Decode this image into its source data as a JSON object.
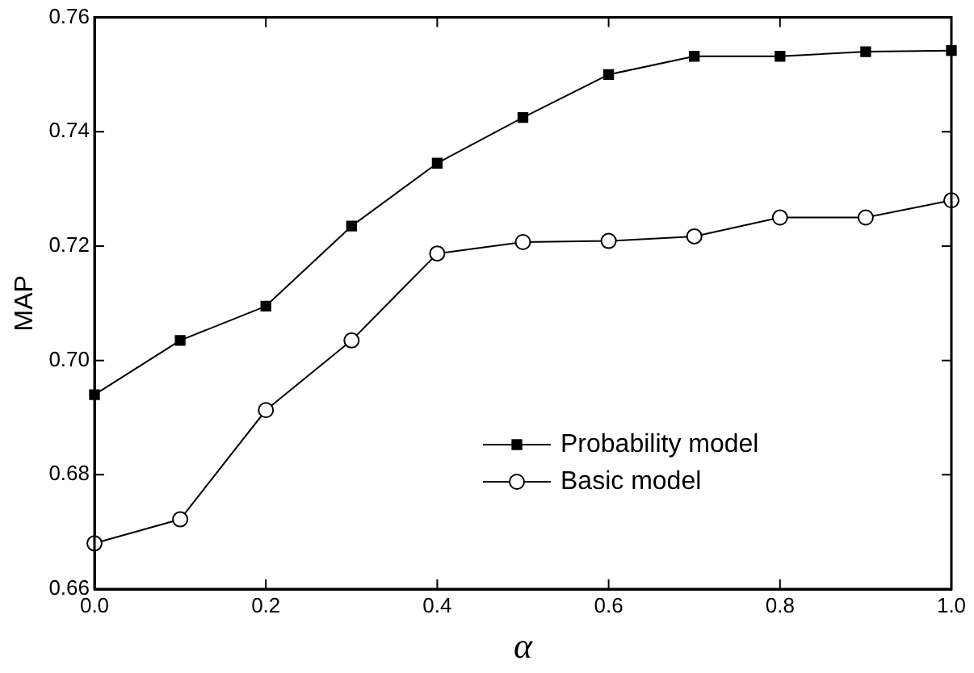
{
  "chart_data": {
    "type": "line",
    "xlabel": "α",
    "ylabel": "MAP",
    "x": [
      0,
      0.1,
      0.2,
      0.3,
      0.4,
      0.5,
      0.6,
      0.7,
      0.8,
      0.9,
      1.0
    ],
    "xlim": [
      0,
      1
    ],
    "xticks": [
      {
        "value": 0,
        "label": "0.0"
      },
      0.2,
      0.4,
      0.6,
      0.8,
      {
        "value": 1,
        "label": "1.0"
      }
    ],
    "ylim": [
      0.66,
      0.76
    ],
    "yticks": [
      0.66,
      {
        "value": 0.68,
        "label": "0.68"
      },
      {
        "value": 0.7,
        "label": "0.70"
      },
      {
        "value": 0.72,
        "label": "0.72"
      },
      0.74,
      0.76
    ],
    "grid": false,
    "legend": "bottom right",
    "line_style": "solid",
    "series": [
      {
        "name": "Probability model",
        "color": "#000000",
        "marker": "square",
        "values": [
          0.694,
          0.7035,
          0.7095,
          0.7235,
          0.7345,
          0.7425,
          0.75,
          0.7532,
          0.7532,
          0.754,
          0.7542
        ]
      },
      {
        "name": "Basic model",
        "color": "#000000",
        "marker": "circle",
        "values": [
          0.668,
          0.6722,
          0.6913,
          0.7035,
          0.7187,
          0.7207,
          0.7209,
          0.7217,
          0.725,
          0.725,
          0.728
        ]
      }
    ]
  }
}
